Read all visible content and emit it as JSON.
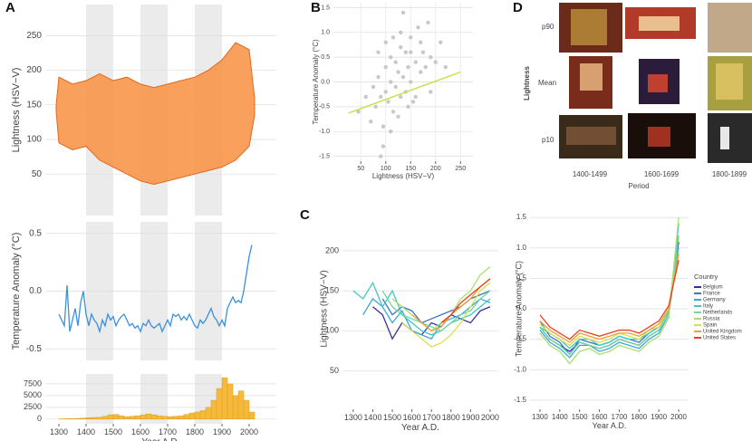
{
  "panel_labels": [
    "A",
    "B",
    "C",
    "D"
  ],
  "chart_data": [
    {
      "type": "band",
      "ylabel": "Lightness (HSV−V)",
      "xlim": [
        1250,
        2100
      ],
      "ylim": [
        -10,
        295
      ],
      "yticks": [
        50,
        100,
        150,
        200,
        250
      ],
      "grid": true,
      "shaded_spans": [
        [
          1400,
          1500
        ],
        [
          1600,
          1700
        ],
        [
          1800,
          1900
        ]
      ],
      "color": "#f7964a",
      "stroke_color": "#e06a1e",
      "x": [
        1290,
        1300,
        1350,
        1400,
        1450,
        1500,
        1550,
        1600,
        1650,
        1700,
        1750,
        1800,
        1850,
        1900,
        1950,
        2000,
        2020
      ],
      "upper": [
        150,
        190,
        180,
        185,
        195,
        185,
        190,
        180,
        175,
        180,
        185,
        190,
        200,
        215,
        240,
        230,
        160
      ],
      "lower": [
        140,
        95,
        85,
        90,
        70,
        60,
        50,
        40,
        35,
        40,
        45,
        50,
        55,
        60,
        70,
        90,
        135
      ]
    },
    {
      "type": "line",
      "ylabel": "Temperature Anomaly (°C)",
      "xlim": [
        1250,
        2100
      ],
      "ylim": [
        -0.6,
        0.6
      ],
      "yticks": [
        -0.5,
        {
          "value": 0,
          "label": "0.0"
        },
        0.5
      ],
      "grid": true,
      "shaded_spans": [
        [
          1400,
          1500
        ],
        [
          1600,
          1700
        ],
        [
          1800,
          1900
        ]
      ],
      "color": "#3b8fe0",
      "x": [
        1300,
        1310,
        1320,
        1330,
        1340,
        1350,
        1360,
        1370,
        1380,
        1390,
        1400,
        1410,
        1420,
        1430,
        1440,
        1450,
        1460,
        1470,
        1480,
        1490,
        1500,
        1510,
        1520,
        1530,
        1540,
        1550,
        1560,
        1570,
        1580,
        1590,
        1600,
        1610,
        1620,
        1630,
        1640,
        1650,
        1660,
        1670,
        1680,
        1690,
        1700,
        1710,
        1720,
        1730,
        1740,
        1750,
        1760,
        1770,
        1780,
        1790,
        1800,
        1810,
        1820,
        1830,
        1840,
        1850,
        1860,
        1870,
        1880,
        1890,
        1900,
        1910,
        1920,
        1930,
        1940,
        1950,
        1960,
        1970,
        1980,
        1990,
        2000,
        2010
      ],
      "values": [
        -0.2,
        -0.25,
        -0.3,
        0.05,
        -0.35,
        -0.25,
        -0.15,
        -0.3,
        -0.1,
        0.0,
        -0.2,
        -0.3,
        -0.2,
        -0.25,
        -0.28,
        -0.35,
        -0.25,
        -0.3,
        -0.2,
        -0.25,
        -0.22,
        -0.3,
        -0.25,
        -0.22,
        -0.2,
        -0.25,
        -0.3,
        -0.28,
        -0.32,
        -0.3,
        -0.35,
        -0.28,
        -0.3,
        -0.25,
        -0.3,
        -0.32,
        -0.3,
        -0.28,
        -0.35,
        -0.3,
        -0.25,
        -0.3,
        -0.2,
        -0.22,
        -0.2,
        -0.25,
        -0.22,
        -0.25,
        -0.2,
        -0.25,
        -0.3,
        -0.32,
        -0.25,
        -0.28,
        -0.25,
        -0.2,
        -0.15,
        -0.22,
        -0.25,
        -0.3,
        -0.25,
        -0.3,
        -0.15,
        -0.1,
        -0.05,
        -0.1,
        -0.08,
        -0.1,
        0.0,
        0.15,
        0.3,
        0.4
      ]
    },
    {
      "type": "histogram",
      "xlabel": "Year A.D.",
      "xlim": [
        1250,
        2100
      ],
      "ylim": [
        -1000,
        9600
      ],
      "xticks": [
        1300,
        1400,
        1500,
        1600,
        1700,
        1800,
        1900,
        2000
      ],
      "yticks": [
        0,
        2500,
        5000,
        7500
      ],
      "grid": true,
      "shaded_spans": [
        [
          1400,
          1500
        ],
        [
          1600,
          1700
        ],
        [
          1800,
          1900
        ]
      ],
      "color": "#f6b93b",
      "bins": [
        1300,
        1320,
        1340,
        1360,
        1380,
        1400,
        1420,
        1440,
        1460,
        1480,
        1500,
        1520,
        1540,
        1560,
        1580,
        1600,
        1620,
        1640,
        1660,
        1680,
        1700,
        1720,
        1740,
        1760,
        1780,
        1800,
        1820,
        1840,
        1860,
        1880,
        1900,
        1920,
        1940,
        1960,
        1980,
        2000,
        2020
      ],
      "values": [
        50,
        80,
        100,
        150,
        200,
        300,
        350,
        400,
        600,
        900,
        1000,
        700,
        500,
        600,
        700,
        900,
        1100,
        900,
        700,
        600,
        500,
        600,
        700,
        1000,
        1300,
        1500,
        1800,
        2500,
        4000,
        6500,
        8800,
        7500,
        5000,
        6000,
        4000,
        1500
      ]
    },
    {
      "type": "scatter",
      "xlabel": "Lightness (HSV−V)",
      "ylabel": "Temperature Anomaly (°C)",
      "xlim": [
        -5,
        275
      ],
      "ylim": [
        -1.6,
        1.6
      ],
      "xticks": [
        50,
        100,
        150,
        200,
        250
      ],
      "yticks": [
        -1.5,
        {
          "value": -1,
          "label": "-1.0"
        },
        -0.5,
        {
          "value": 0,
          "label": "0.0"
        },
        0.5,
        {
          "value": 1,
          "label": "1.0"
        },
        1.5
      ],
      "grid": true,
      "color": "#c8c8c8",
      "x": [
        45,
        60,
        70,
        75,
        80,
        85,
        90,
        95,
        100,
        100,
        105,
        110,
        110,
        115,
        120,
        120,
        125,
        130,
        130,
        135,
        140,
        140,
        145,
        150,
        150,
        155,
        160,
        165,
        170,
        175,
        180,
        185,
        190,
        200,
        210,
        220,
        95,
        85,
        115,
        125,
        135,
        145,
        160,
        170,
        110,
        100,
        90,
        130,
        150,
        190
      ],
      "y": [
        -0.6,
        -0.3,
        -0.8,
        -0.1,
        -0.5,
        0.1,
        -0.3,
        -0.9,
        -0.2,
        0.3,
        -0.4,
        0.0,
        0.5,
        -0.6,
        -0.1,
        0.4,
        0.2,
        -0.3,
        0.7,
        0.1,
        -0.2,
        0.6,
        0.3,
        0.0,
        0.9,
        -0.4,
        0.4,
        1.1,
        0.2,
        0.6,
        0.3,
        1.2,
        0.5,
        0.4,
        0.8,
        0.3,
        -1.3,
        0.6,
        0.9,
        -0.7,
        1.4,
        -0.5,
        -0.3,
        0.8,
        -1.0,
        0.8,
        -1.5,
        1.0,
        0.6,
        -0.2
      ],
      "fit": {
        "x": [
          25,
          250
        ],
        "y": [
          -0.63,
          0.2
        ],
        "color": "#c8e04a"
      }
    },
    {
      "type": "line",
      "xlabel": "Year A.D.",
      "ylabel": "Lightness (HSV−V)",
      "xlim": [
        1245,
        2042
      ],
      "ylim": [
        2,
        253
      ],
      "xticks": [
        1300,
        1400,
        1500,
        1600,
        1700,
        1800,
        1900,
        2000
      ],
      "yticks": [
        50,
        100,
        150,
        200
      ],
      "grid": true,
      "x": [
        1300,
        1350,
        1400,
        1450,
        1500,
        1550,
        1600,
        1650,
        1700,
        1750,
        1800,
        1850,
        1900,
        1950,
        2000
      ],
      "series": [
        {
          "color": "#3b2f9e",
          "values": [
            null,
            null,
            130,
            120,
            90,
            110,
            100,
            95,
            110,
            105,
            120,
            115,
            110,
            125,
            130
          ]
        },
        {
          "color": "#3f72c8",
          "values": [
            null,
            null,
            null,
            140,
            120,
            130,
            125,
            110,
            115,
            120,
            125,
            130,
            140,
            145,
            150
          ]
        },
        {
          "color": "#3fa6d8",
          "values": [
            null,
            120,
            140,
            130,
            110,
            125,
            100,
            95,
            90,
            110,
            115,
            120,
            130,
            140,
            135
          ]
        },
        {
          "color": "#40c8c0",
          "values": [
            150,
            140,
            160,
            130,
            150,
            120,
            110,
            100,
            95,
            100,
            110,
            115,
            120,
            130,
            140
          ]
        },
        {
          "color": "#6fd8a0",
          "values": [
            null,
            null,
            null,
            150,
            130,
            120,
            115,
            110,
            105,
            100,
            110,
            120,
            125,
            140,
            150
          ]
        },
        {
          "color": "#a8e070",
          "values": [
            null,
            null,
            null,
            null,
            140,
            130,
            120,
            110,
            100,
            110,
            120,
            140,
            150,
            170,
            180
          ]
        },
        {
          "color": "#d8e050",
          "values": [
            null,
            null,
            null,
            null,
            null,
            110,
            100,
            90,
            80,
            85,
            95,
            110,
            130,
            150,
            160
          ]
        },
        {
          "color": "#f0a030",
          "values": [
            null,
            null,
            null,
            null,
            null,
            null,
            120,
            110,
            100,
            105,
            120,
            130,
            140,
            155,
            165
          ]
        },
        {
          "color": "#e84020",
          "values": [
            null,
            null,
            null,
            null,
            null,
            null,
            null,
            null,
            null,
            110,
            120,
            135,
            145,
            155,
            165
          ]
        }
      ]
    },
    {
      "type": "line",
      "xlabel": "Year A.D.",
      "ylabel": "Temperature Anomaly (°C)",
      "xlim": [
        1250,
        2050
      ],
      "ylim": [
        -1.65,
        1.65
      ],
      "xticks": [
        1300,
        1400,
        1500,
        1600,
        1700,
        1800,
        1900,
        2000
      ],
      "yticks": [
        -1.5,
        {
          "value": -1,
          "label": "-1.0"
        },
        -0.5,
        {
          "value": 0,
          "label": "0.0"
        },
        0.5,
        {
          "value": 1,
          "label": "1.0"
        },
        1.5
      ],
      "grid": true,
      "legend": "right",
      "legend_title": "Country",
      "x": [
        1300,
        1350,
        1400,
        1450,
        1500,
        1550,
        1600,
        1650,
        1700,
        1750,
        1800,
        1850,
        1900,
        1950,
        2000
      ],
      "series": [
        {
          "name": "Belgium",
          "color": "#3b2f9e",
          "values": [
            -0.3,
            -0.5,
            -0.6,
            -0.7,
            -0.55,
            -0.6,
            -0.65,
            -0.6,
            -0.5,
            -0.55,
            -0.6,
            -0.45,
            -0.35,
            -0.1,
            1.1
          ]
        },
        {
          "name": "France",
          "color": "#3f72c8",
          "values": [
            -0.2,
            -0.45,
            -0.55,
            -0.75,
            -0.5,
            -0.55,
            -0.6,
            -0.55,
            -0.45,
            -0.5,
            -0.55,
            -0.4,
            -0.3,
            -0.05,
            1.2
          ]
        },
        {
          "name": "Germany",
          "color": "#3fa6d8",
          "values": [
            -0.35,
            -0.55,
            -0.65,
            -0.8,
            -0.6,
            -0.6,
            -0.7,
            -0.65,
            -0.55,
            -0.6,
            -0.65,
            -0.5,
            -0.4,
            -0.1,
            1.4
          ]
        },
        {
          "name": "Italy",
          "color": "#40c8c0",
          "values": [
            -0.3,
            -0.4,
            -0.5,
            -0.65,
            -0.5,
            -0.5,
            -0.6,
            -0.55,
            -0.45,
            -0.5,
            -0.5,
            -0.4,
            -0.3,
            -0.05,
            1.0
          ]
        },
        {
          "name": "Netherlands",
          "color": "#6fd8a0",
          "values": [
            -0.3,
            -0.5,
            -0.6,
            -0.75,
            -0.55,
            -0.6,
            -0.65,
            -0.6,
            -0.5,
            -0.55,
            -0.6,
            -0.45,
            -0.35,
            -0.1,
            1.2
          ]
        },
        {
          "name": "Russia",
          "color": "#a8e070",
          "values": [
            -0.4,
            -0.6,
            -0.7,
            -0.9,
            -0.7,
            -0.65,
            -0.75,
            -0.7,
            -0.6,
            -0.65,
            -0.7,
            -0.55,
            -0.45,
            -0.15,
            1.5
          ]
        },
        {
          "name": "Spain",
          "color": "#d8e050",
          "values": [
            -0.25,
            -0.4,
            -0.5,
            -0.6,
            -0.45,
            -0.5,
            -0.55,
            -0.5,
            -0.4,
            -0.45,
            -0.5,
            -0.35,
            -0.3,
            0.0,
            0.9
          ]
        },
        {
          "name": "United Kingdom",
          "color": "#f0a030",
          "values": [
            -0.2,
            -0.35,
            -0.45,
            -0.55,
            -0.4,
            -0.45,
            -0.5,
            -0.45,
            -0.4,
            -0.4,
            -0.45,
            -0.35,
            -0.25,
            0.0,
            0.9
          ]
        },
        {
          "name": "United States",
          "color": "#e84020",
          "values": [
            -0.1,
            -0.3,
            -0.4,
            -0.5,
            -0.35,
            -0.4,
            -0.45,
            -0.4,
            -0.35,
            -0.35,
            -0.4,
            -0.3,
            -0.2,
            0.05,
            0.8
          ]
        }
      ]
    }
  ],
  "panel_d": {
    "y_title": "Lightness",
    "x_title": "Period",
    "row_labels": [
      "p90",
      "Mean",
      "p10"
    ],
    "col_labels": [
      "1400-1499",
      "1600-1699",
      "1800-1899"
    ]
  }
}
